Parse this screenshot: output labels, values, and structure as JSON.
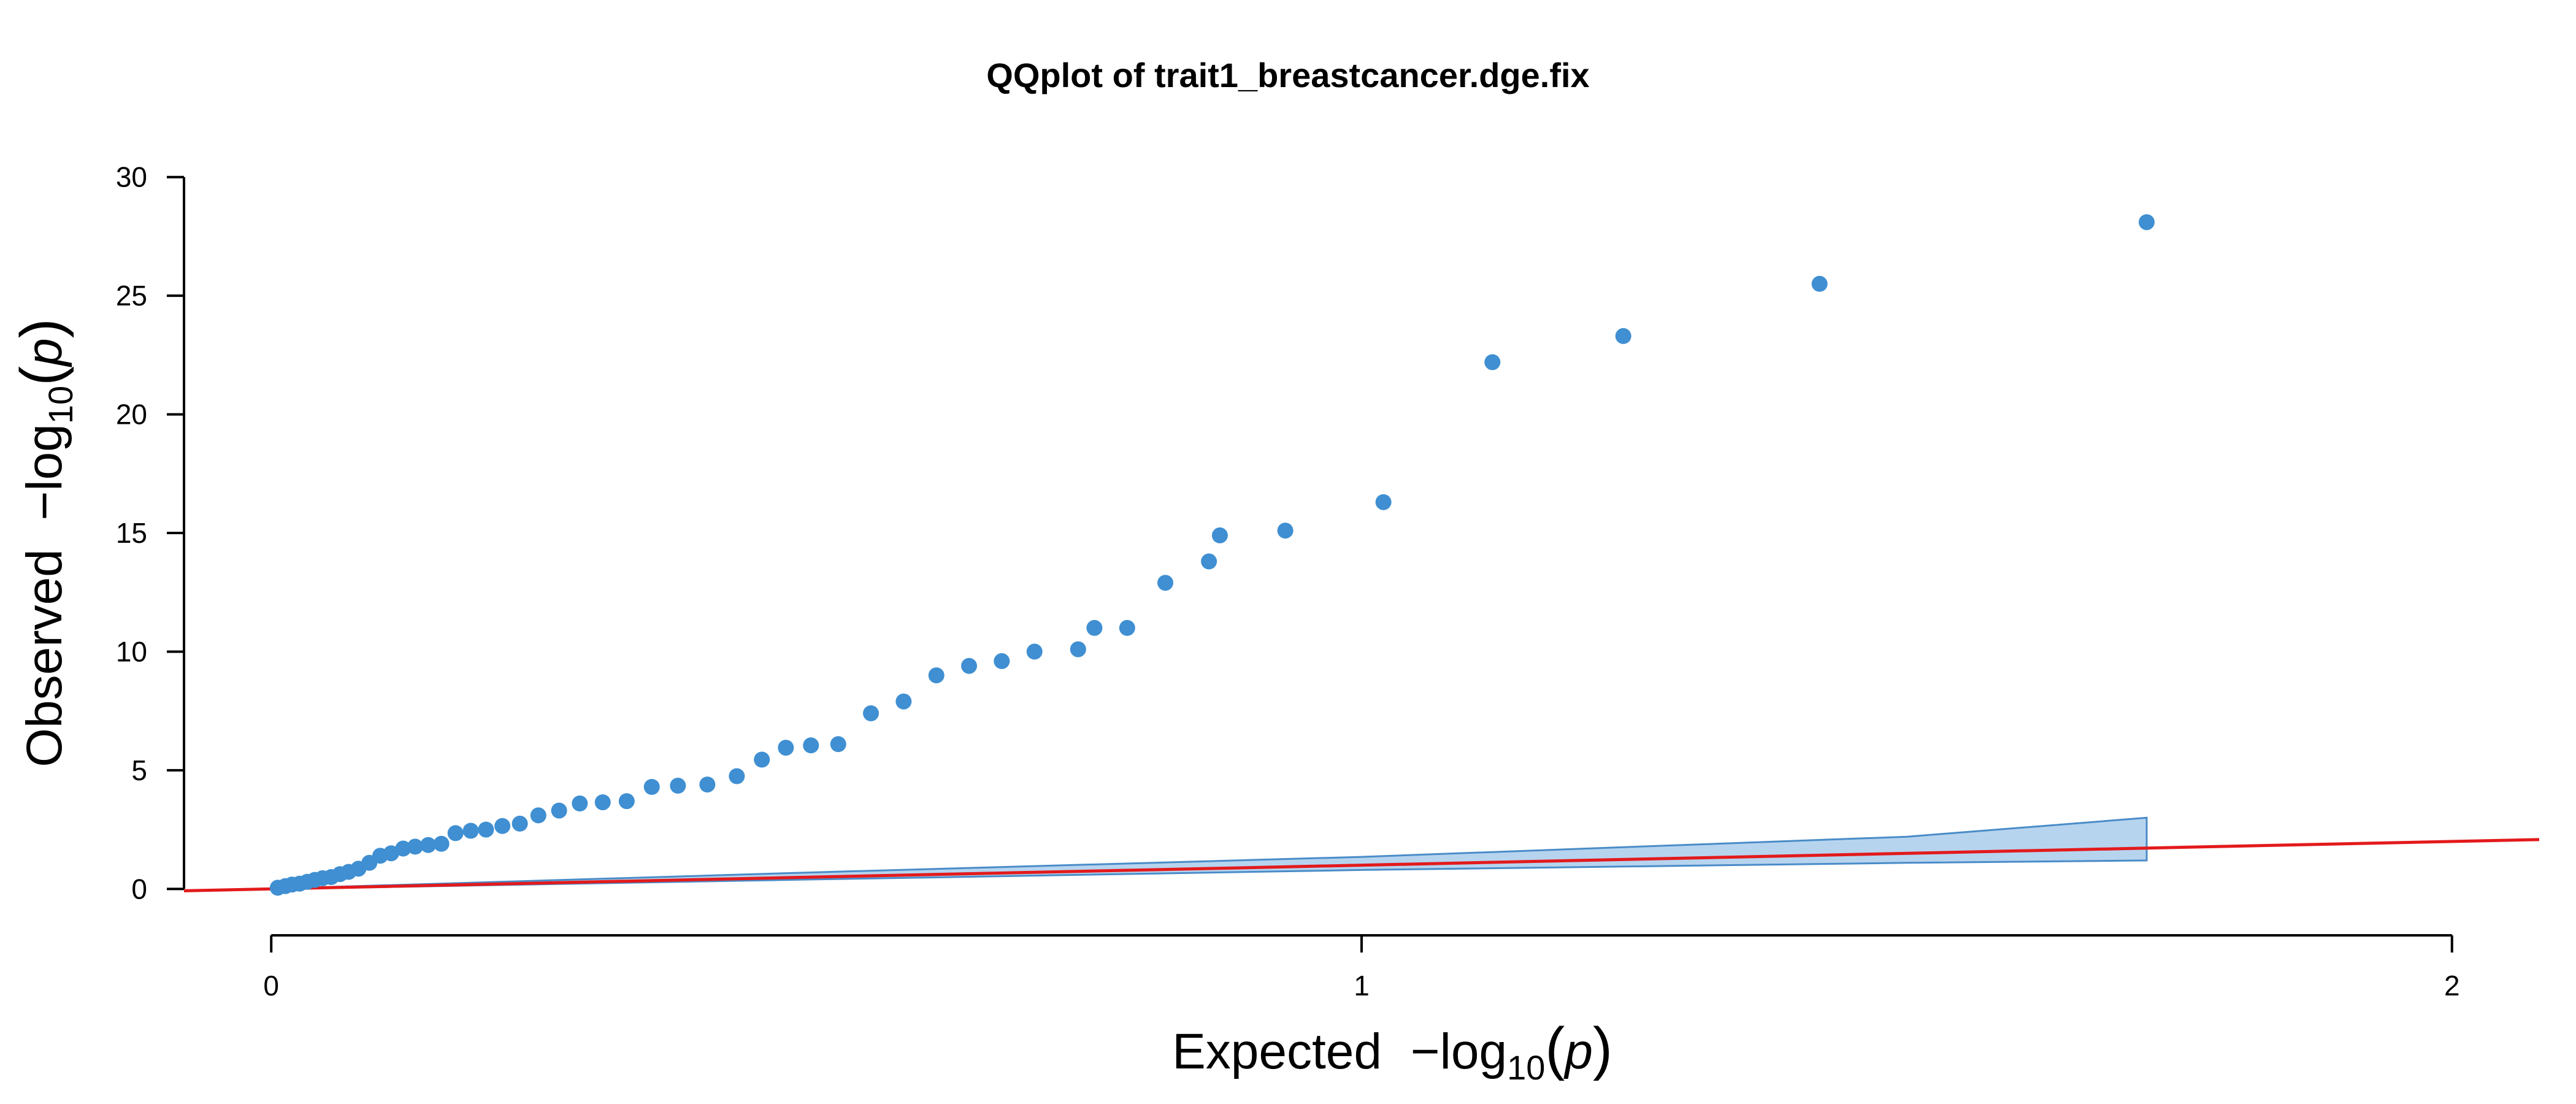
{
  "chart_data": {
    "type": "scatter",
    "title": "QQplot of trait1_breastcancer.dge.fix",
    "xlabel": {
      "text": "Expected",
      "prefix": "−log",
      "sub": "10",
      "open": "(",
      "var": "p",
      "close": ")"
    },
    "ylabel": {
      "text": "Observed",
      "prefix": "−log",
      "sub": "10",
      "open": "(",
      "var": "p",
      "close": ")"
    },
    "xlim": [
      -0.08,
      2.08
    ],
    "ylim": [
      -1.0,
      31.0
    ],
    "xticks": [
      0,
      1,
      2
    ],
    "xtick_labels": [
      "0",
      "1",
      "2"
    ],
    "yticks": [
      0,
      5,
      10,
      15,
      20,
      25,
      30
    ],
    "ytick_labels": [
      "0",
      "5",
      "10",
      "15",
      "20",
      "25",
      "30"
    ],
    "grid": false,
    "colors": {
      "points": "#3f8fd2",
      "ci_fill": "#b7d4ef",
      "ci_stroke": "#4a8cc8",
      "reference_line": "#e31a1c"
    },
    "reference_line": {
      "slope": 1,
      "intercept": 0,
      "x_range": [
        -0.08,
        2.08
      ]
    },
    "confidence_band": {
      "x": [
        0.01,
        0.5,
        1.0,
        1.5,
        1.72
      ],
      "upper": [
        0.02,
        0.7,
        1.35,
        2.2,
        3.0
      ],
      "lower": [
        0.0,
        0.4,
        0.8,
        1.1,
        1.2
      ]
    },
    "points": [
      [
        0.006,
        0.05
      ],
      [
        0.013,
        0.12
      ],
      [
        0.019,
        0.18
      ],
      [
        0.026,
        0.22
      ],
      [
        0.033,
        0.3
      ],
      [
        0.04,
        0.38
      ],
      [
        0.047,
        0.45
      ],
      [
        0.055,
        0.5
      ],
      [
        0.063,
        0.62
      ],
      [
        0.071,
        0.72
      ],
      [
        0.08,
        0.85
      ],
      [
        0.09,
        1.1
      ],
      [
        0.1,
        1.4
      ],
      [
        0.11,
        1.5
      ],
      [
        0.121,
        1.7
      ],
      [
        0.132,
        1.78
      ],
      [
        0.144,
        1.85
      ],
      [
        0.156,
        1.9
      ],
      [
        0.169,
        2.35
      ],
      [
        0.183,
        2.45
      ],
      [
        0.197,
        2.5
      ],
      [
        0.212,
        2.65
      ],
      [
        0.228,
        2.75
      ],
      [
        0.245,
        3.1
      ],
      [
        0.264,
        3.3
      ],
      [
        0.283,
        3.6
      ],
      [
        0.304,
        3.65
      ],
      [
        0.326,
        3.7
      ],
      [
        0.349,
        4.3
      ],
      [
        0.373,
        4.35
      ],
      [
        0.4,
        4.4
      ],
      [
        0.427,
        4.75
      ],
      [
        0.45,
        5.45
      ],
      [
        0.472,
        5.95
      ],
      [
        0.495,
        6.05
      ],
      [
        0.52,
        6.1
      ],
      [
        0.55,
        7.4
      ],
      [
        0.58,
        7.9
      ],
      [
        0.61,
        9.0
      ],
      [
        0.64,
        9.4
      ],
      [
        0.67,
        9.6
      ],
      [
        0.7,
        10.0
      ],
      [
        0.74,
        10.1
      ],
      [
        0.755,
        11.0
      ],
      [
        0.785,
        11.0
      ],
      [
        0.82,
        12.9
      ],
      [
        0.86,
        13.8
      ],
      [
        0.87,
        14.9
      ],
      [
        0.93,
        15.1
      ],
      [
        1.02,
        16.3
      ],
      [
        1.12,
        22.2
      ],
      [
        1.24,
        23.3
      ],
      [
        1.42,
        25.5
      ],
      [
        1.72,
        28.1
      ]
    ]
  }
}
